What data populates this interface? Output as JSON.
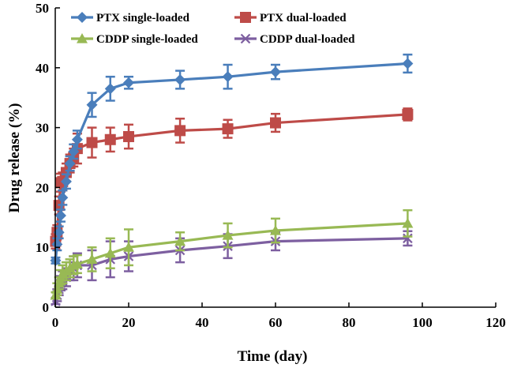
{
  "chart_data": {
    "type": "line",
    "title": "",
    "xlabel": "Time (day)",
    "ylabel": "Drug release (%)",
    "xlim": [
      0,
      120
    ],
    "ylim": [
      0,
      50
    ],
    "xticks": [
      0,
      20,
      40,
      60,
      80,
      100,
      120
    ],
    "yticks": [
      0,
      10,
      20,
      30,
      40,
      50
    ],
    "grid": false,
    "legend_position": "top",
    "series": [
      {
        "name": "PTX single-loaded",
        "color": "#4a7ebb",
        "marker": "diamond",
        "x": [
          0.1,
          0.5,
          1,
          1.5,
          2,
          3,
          4,
          5,
          6,
          10,
          15,
          20,
          34,
          47,
          60,
          96
        ],
        "y": [
          7.8,
          10.5,
          12.5,
          15.3,
          18.3,
          21.0,
          24.0,
          26.0,
          28.0,
          33.8,
          36.5,
          37.5,
          38.0,
          38.5,
          39.3,
          40.7
        ],
        "err": [
          0.5,
          1.0,
          1.0,
          1.0,
          1.2,
          1.2,
          1.2,
          1.2,
          1.5,
          2.0,
          2.0,
          1.0,
          1.5,
          2.0,
          1.2,
          1.5
        ]
      },
      {
        "name": "PTX dual-loaded",
        "color": "#be4b48",
        "marker": "square",
        "x": [
          0.1,
          0.5,
          1,
          1.5,
          2,
          3,
          4,
          5,
          6,
          10,
          15,
          20,
          34,
          47,
          60,
          96
        ],
        "y": [
          11.0,
          12.5,
          17.0,
          20.8,
          21.0,
          22.5,
          24.0,
          25.0,
          26.5,
          27.5,
          28.0,
          28.5,
          29.5,
          29.8,
          30.8,
          32.2
        ],
        "err": [
          1.2,
          1.2,
          1.5,
          1.5,
          1.5,
          1.5,
          1.5,
          1.5,
          2.5,
          2.5,
          2.0,
          2.0,
          2.0,
          1.5,
          1.5,
          1.0
        ]
      },
      {
        "name": "CDDP single-loaded",
        "color": "#98b954",
        "marker": "triangle",
        "x": [
          0.1,
          0.5,
          1,
          1.5,
          2,
          3,
          4,
          5,
          6,
          10,
          15,
          20,
          34,
          47,
          60,
          96
        ],
        "y": [
          2.0,
          3.0,
          4.0,
          5.0,
          5.5,
          6.0,
          6.5,
          7.0,
          7.2,
          8.0,
          9.0,
          10.0,
          11.0,
          12.0,
          12.8,
          14.0
        ],
        "err": [
          0.5,
          1.0,
          1.0,
          1.2,
          1.5,
          1.5,
          1.5,
          1.5,
          1.5,
          2.0,
          2.5,
          3.0,
          1.5,
          2.0,
          2.0,
          2.2
        ]
      },
      {
        "name": "CDDP dual-loaded",
        "color": "#7d5fa0",
        "marker": "x",
        "x": [
          0.1,
          0.5,
          1,
          1.5,
          2,
          3,
          4,
          5,
          6,
          10,
          15,
          20,
          34,
          47,
          60,
          96
        ],
        "y": [
          1.0,
          2.0,
          3.0,
          4.0,
          4.5,
          5.0,
          6.0,
          6.5,
          7.0,
          7.0,
          8.0,
          8.5,
          9.5,
          10.2,
          11.0,
          11.5
        ],
        "err": [
          0.5,
          1.0,
          1.0,
          1.2,
          1.5,
          1.5,
          1.5,
          2.0,
          2.0,
          2.5,
          3.0,
          2.5,
          2.0,
          2.0,
          1.5,
          1.2
        ]
      }
    ]
  }
}
